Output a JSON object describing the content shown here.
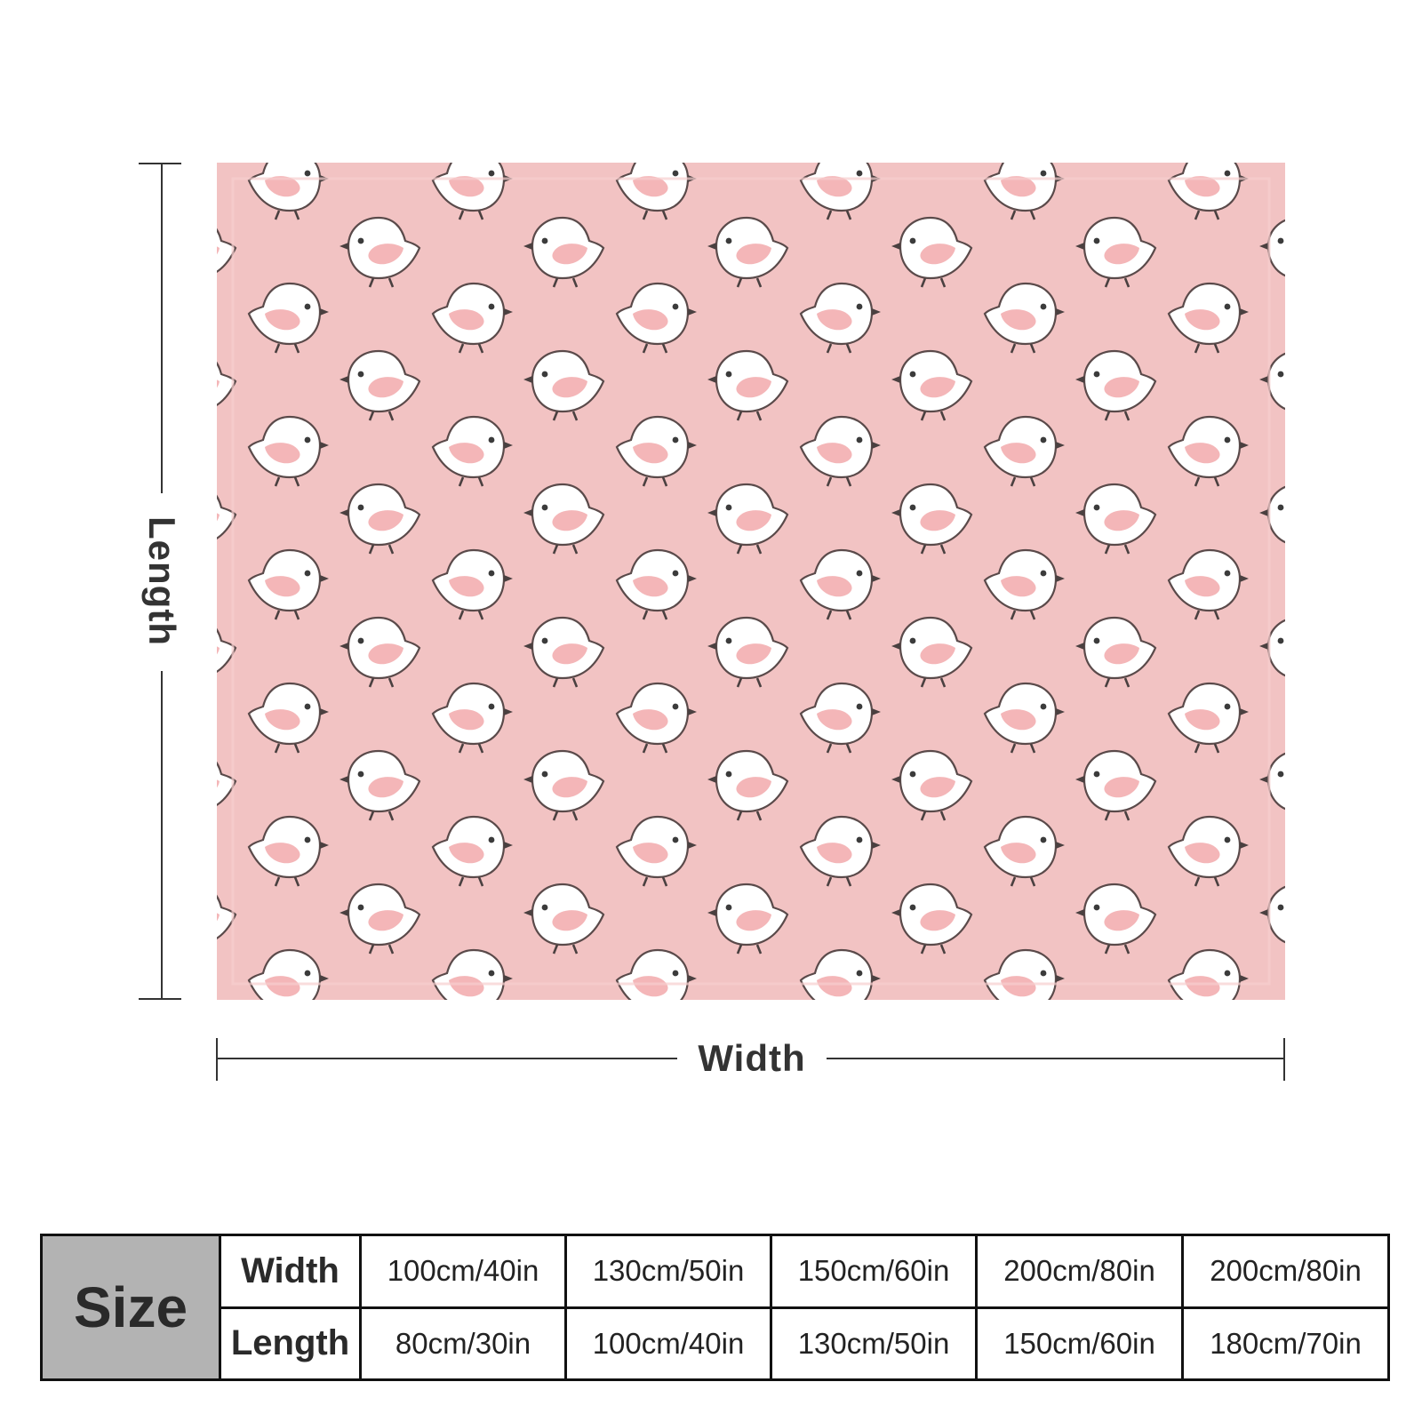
{
  "blanket": {
    "background_color": "#f2c3c3",
    "motif": "white-chick-icon",
    "chick_body_color": "#ffffff",
    "chick_wing_color": "#f4b6b8",
    "chick_outline_color": "#5a4a4a"
  },
  "dimensions": {
    "length_label": "Length",
    "width_label": "Width"
  },
  "size_table": {
    "header": "Size",
    "width_label": "Width",
    "length_label": "Length",
    "width_values": [
      "100cm/40in",
      "130cm/50in",
      "150cm/60in",
      "200cm/80in",
      "200cm/80in"
    ],
    "length_values": [
      "80cm/30in",
      "100cm/40in",
      "130cm/50in",
      "150cm/60in",
      "180cm/70in"
    ]
  }
}
